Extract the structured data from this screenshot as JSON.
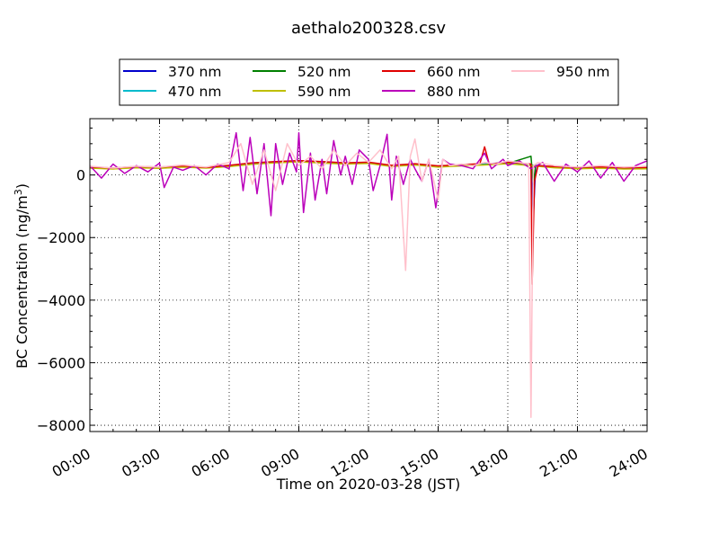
{
  "chart_data": {
    "type": "line",
    "title": "aethalo200328.csv",
    "xlabel": "Time on 2020-03-28 (JST)",
    "ylabel": "BC Concentration (ng/m³)",
    "ylabel_parts": {
      "base": "BC Concentration (ng/m",
      "sup": "3",
      "end": ")"
    },
    "x_ticks": [
      "00:00",
      "03:00",
      "06:00",
      "09:00",
      "12:00",
      "15:00",
      "18:00",
      "21:00",
      "24:00"
    ],
    "x_tick_hours": [
      0,
      3,
      6,
      9,
      12,
      15,
      18,
      21,
      24
    ],
    "xlim_hours": [
      0,
      24
    ],
    "y_ticks": [
      0,
      -2000,
      -4000,
      -6000,
      -8000
    ],
    "y_tick_labels": [
      "0",
      "−2000",
      "−4000",
      "−6000",
      "−8000"
    ],
    "ylim": [
      -8200,
      1800
    ],
    "grid": true,
    "legend_position": "top, above plot, 4 columns",
    "series": [
      {
        "name": "370 nm",
        "color": "#0000cc",
        "points": [
          [
            0,
            250
          ],
          [
            1,
            200
          ],
          [
            2,
            260
          ],
          [
            3,
            240
          ],
          [
            4,
            280
          ],
          [
            5,
            230
          ],
          [
            6,
            300
          ],
          [
            7,
            380
          ],
          [
            8,
            420
          ],
          [
            9,
            450
          ],
          [
            10,
            420
          ],
          [
            11,
            380
          ],
          [
            12,
            400
          ],
          [
            13,
            300
          ],
          [
            14,
            350
          ],
          [
            15,
            280
          ],
          [
            16,
            320
          ],
          [
            17,
            350
          ],
          [
            18,
            400
          ],
          [
            19,
            340
          ],
          [
            19.1,
            -1350
          ],
          [
            19.2,
            300
          ],
          [
            20,
            260
          ],
          [
            21,
            230
          ],
          [
            22,
            250
          ],
          [
            23,
            220
          ],
          [
            24,
            230
          ]
        ]
      },
      {
        "name": "470 nm",
        "color": "#00bbcc",
        "points": [
          [
            0,
            240
          ],
          [
            1,
            210
          ],
          [
            2,
            250
          ],
          [
            3,
            230
          ],
          [
            4,
            270
          ],
          [
            5,
            240
          ],
          [
            6,
            290
          ],
          [
            7,
            360
          ],
          [
            8,
            410
          ],
          [
            9,
            440
          ],
          [
            10,
            400
          ],
          [
            11,
            370
          ],
          [
            12,
            390
          ],
          [
            13,
            290
          ],
          [
            14,
            340
          ],
          [
            15,
            270
          ],
          [
            16,
            310
          ],
          [
            17,
            340
          ],
          [
            18,
            380
          ],
          [
            19,
            320
          ],
          [
            20,
            250
          ],
          [
            21,
            220
          ],
          [
            22,
            240
          ],
          [
            23,
            210
          ],
          [
            24,
            220
          ]
        ]
      },
      {
        "name": "520 nm",
        "color": "#007f00",
        "points": [
          [
            0,
            230
          ],
          [
            1,
            200
          ],
          [
            2,
            240
          ],
          [
            3,
            220
          ],
          [
            4,
            260
          ],
          [
            5,
            230
          ],
          [
            6,
            280
          ],
          [
            7,
            350
          ],
          [
            8,
            400
          ],
          [
            9,
            430
          ],
          [
            10,
            390
          ],
          [
            11,
            360
          ],
          [
            12,
            380
          ],
          [
            13,
            280
          ],
          [
            14,
            330
          ],
          [
            15,
            260
          ],
          [
            16,
            300
          ],
          [
            17,
            330
          ],
          [
            18,
            370
          ],
          [
            19,
            600
          ],
          [
            19.1,
            -300
          ],
          [
            19.2,
            300
          ],
          [
            20,
            240
          ],
          [
            21,
            210
          ],
          [
            22,
            230
          ],
          [
            23,
            200
          ],
          [
            24,
            210
          ]
        ]
      },
      {
        "name": "590 nm",
        "color": "#bfbf00",
        "points": [
          [
            0,
            220
          ],
          [
            1,
            190
          ],
          [
            2,
            230
          ],
          [
            3,
            210
          ],
          [
            4,
            250
          ],
          [
            5,
            220
          ],
          [
            6,
            270
          ],
          [
            7,
            340
          ],
          [
            8,
            390
          ],
          [
            9,
            420
          ],
          [
            10,
            380
          ],
          [
            11,
            350
          ],
          [
            12,
            370
          ],
          [
            13,
            270
          ],
          [
            14,
            320
          ],
          [
            15,
            250
          ],
          [
            16,
            290
          ],
          [
            17,
            320
          ],
          [
            18,
            360
          ],
          [
            19,
            300
          ],
          [
            20,
            230
          ],
          [
            21,
            200
          ],
          [
            22,
            220
          ],
          [
            23,
            190
          ],
          [
            24,
            200
          ]
        ]
      },
      {
        "name": "660 nm",
        "color": "#e00000",
        "points": [
          [
            0,
            260
          ],
          [
            1,
            220
          ],
          [
            2,
            270
          ],
          [
            3,
            250
          ],
          [
            4,
            290
          ],
          [
            5,
            240
          ],
          [
            6,
            310
          ],
          [
            7,
            390
          ],
          [
            8,
            430
          ],
          [
            9,
            460
          ],
          [
            10,
            430
          ],
          [
            11,
            390
          ],
          [
            12,
            410
          ],
          [
            13,
            310
          ],
          [
            14,
            360
          ],
          [
            15,
            290
          ],
          [
            16,
            330
          ],
          [
            16.8,
            360
          ],
          [
            17.0,
            900
          ],
          [
            17.2,
            350
          ],
          [
            18,
            410
          ],
          [
            19,
            350
          ],
          [
            19.05,
            -3500
          ],
          [
            19.15,
            -200
          ],
          [
            19.3,
            300
          ],
          [
            20,
            270
          ],
          [
            21,
            240
          ],
          [
            22,
            260
          ],
          [
            23,
            230
          ],
          [
            24,
            240
          ]
        ]
      },
      {
        "name": "880 nm",
        "color": "#bb00bb",
        "points": [
          [
            0,
            300
          ],
          [
            0.5,
            -100
          ],
          [
            1,
            350
          ],
          [
            1.5,
            50
          ],
          [
            2,
            300
          ],
          [
            2.5,
            100
          ],
          [
            3,
            380
          ],
          [
            3.2,
            -400
          ],
          [
            3.6,
            250
          ],
          [
            4,
            150
          ],
          [
            4.5,
            300
          ],
          [
            5,
            0
          ],
          [
            5.5,
            350
          ],
          [
            6,
            200
          ],
          [
            6.3,
            1350
          ],
          [
            6.6,
            -500
          ],
          [
            6.9,
            1200
          ],
          [
            7.2,
            -600
          ],
          [
            7.5,
            1000
          ],
          [
            7.8,
            -1300
          ],
          [
            8,
            1000
          ],
          [
            8.3,
            -300
          ],
          [
            8.6,
            700
          ],
          [
            8.9,
            100
          ],
          [
            9,
            1350
          ],
          [
            9.2,
            -1200
          ],
          [
            9.5,
            700
          ],
          [
            9.7,
            -800
          ],
          [
            10,
            500
          ],
          [
            10.2,
            -600
          ],
          [
            10.5,
            1100
          ],
          [
            10.8,
            0
          ],
          [
            11,
            600
          ],
          [
            11.3,
            -300
          ],
          [
            11.6,
            800
          ],
          [
            12,
            500
          ],
          [
            12.2,
            -500
          ],
          [
            12.5,
            300
          ],
          [
            12.8,
            1300
          ],
          [
            13,
            -800
          ],
          [
            13.2,
            600
          ],
          [
            13.5,
            -300
          ],
          [
            13.8,
            500
          ],
          [
            14,
            200
          ],
          [
            14.3,
            -200
          ],
          [
            14.6,
            500
          ],
          [
            14.9,
            -1050
          ],
          [
            15.2,
            500
          ],
          [
            15.5,
            350
          ],
          [
            16,
            300
          ],
          [
            16.5,
            200
          ],
          [
            17,
            700
          ],
          [
            17.3,
            200
          ],
          [
            17.8,
            500
          ],
          [
            18,
            300
          ],
          [
            18.5,
            450
          ],
          [
            19,
            200
          ],
          [
            19.5,
            400
          ],
          [
            20,
            -200
          ],
          [
            20.5,
            350
          ],
          [
            21,
            100
          ],
          [
            21.5,
            450
          ],
          [
            22,
            -100
          ],
          [
            22.5,
            400
          ],
          [
            23,
            -200
          ],
          [
            23.5,
            300
          ],
          [
            24,
            450
          ]
        ]
      },
      {
        "name": "950 nm",
        "color": "#ffc0cb",
        "points": [
          [
            0,
            280
          ],
          [
            1,
            220
          ],
          [
            2,
            280
          ],
          [
            3,
            250
          ],
          [
            4,
            320
          ],
          [
            5,
            250
          ],
          [
            6,
            400
          ],
          [
            6.5,
            1000
          ],
          [
            7,
            -300
          ],
          [
            7.5,
            800
          ],
          [
            8,
            -500
          ],
          [
            8.5,
            1000
          ],
          [
            9,
            300
          ],
          [
            9.5,
            600
          ],
          [
            10,
            200
          ],
          [
            10.5,
            800
          ],
          [
            11,
            300
          ],
          [
            11.5,
            700
          ],
          [
            12,
            400
          ],
          [
            12.5,
            800
          ],
          [
            13,
            200
          ],
          [
            13.3,
            600
          ],
          [
            13.6,
            -3050
          ],
          [
            13.8,
            600
          ],
          [
            14.0,
            1150
          ],
          [
            14.3,
            -200
          ],
          [
            14.6,
            500
          ],
          [
            15.0,
            -800
          ],
          [
            15.2,
            500
          ],
          [
            15.5,
            300
          ],
          [
            16,
            350
          ],
          [
            16.5,
            300
          ],
          [
            17,
            400
          ],
          [
            17.5,
            350
          ],
          [
            18,
            450
          ],
          [
            18.5,
            400
          ],
          [
            18.9,
            350
          ],
          [
            19.0,
            -7750
          ],
          [
            19.1,
            300
          ],
          [
            19.3,
            400
          ],
          [
            20,
            300
          ],
          [
            21,
            250
          ],
          [
            22,
            300
          ],
          [
            23,
            250
          ],
          [
            24,
            280
          ]
        ]
      }
    ]
  }
}
